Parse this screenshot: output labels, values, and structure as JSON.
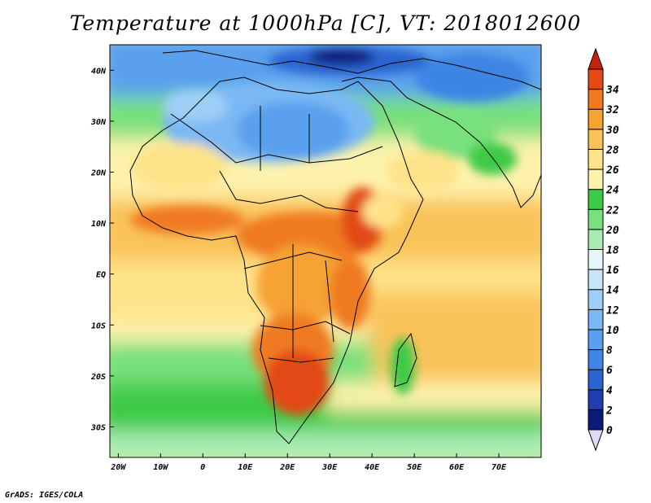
{
  "title": "Temperature at 1000hPa [C], VT: 2018012600",
  "credit": "GrADS: IGES/COLA",
  "map": {
    "lon_range": [
      -22,
      80
    ],
    "lat_range": [
      -36,
      45
    ],
    "lon_ticks": [
      {
        "value": -20,
        "label": "20W"
      },
      {
        "value": -10,
        "label": "10W"
      },
      {
        "value": 0,
        "label": "0"
      },
      {
        "value": 10,
        "label": "10E"
      },
      {
        "value": 20,
        "label": "20E"
      },
      {
        "value": 30,
        "label": "30E"
      },
      {
        "value": 40,
        "label": "40E"
      },
      {
        "value": 50,
        "label": "50E"
      },
      {
        "value": 60,
        "label": "60E"
      },
      {
        "value": 70,
        "label": "70E"
      }
    ],
    "lat_ticks": [
      {
        "value": 40,
        "label": "40N"
      },
      {
        "value": 30,
        "label": "30N"
      },
      {
        "value": 20,
        "label": "20N"
      },
      {
        "value": 10,
        "label": "10N"
      },
      {
        "value": 0,
        "label": "EQ"
      },
      {
        "value": -10,
        "label": "10S"
      },
      {
        "value": -20,
        "label": "20S"
      },
      {
        "value": -30,
        "label": "30S"
      }
    ]
  },
  "colorbar": {
    "labels": [
      "0",
      "2",
      "4",
      "6",
      "8",
      "10",
      "12",
      "14",
      "16",
      "18",
      "20",
      "22",
      "24",
      "26",
      "28",
      "30",
      "32",
      "34"
    ],
    "colors": [
      "#0c1a78",
      "#1f3fae",
      "#2a64d0",
      "#3e85e4",
      "#5aa0ee",
      "#7ab8f4",
      "#9fcff7",
      "#c6e6f8",
      "#e4f7f4",
      "#a8ecb4",
      "#78e07c",
      "#3dca46",
      "#fef3ad",
      "#fee38a",
      "#f9c35a",
      "#f6a235",
      "#f07a22",
      "#e24a15"
    ],
    "under_color": "#dcdcf8",
    "over_color": "#c8200e"
  }
}
